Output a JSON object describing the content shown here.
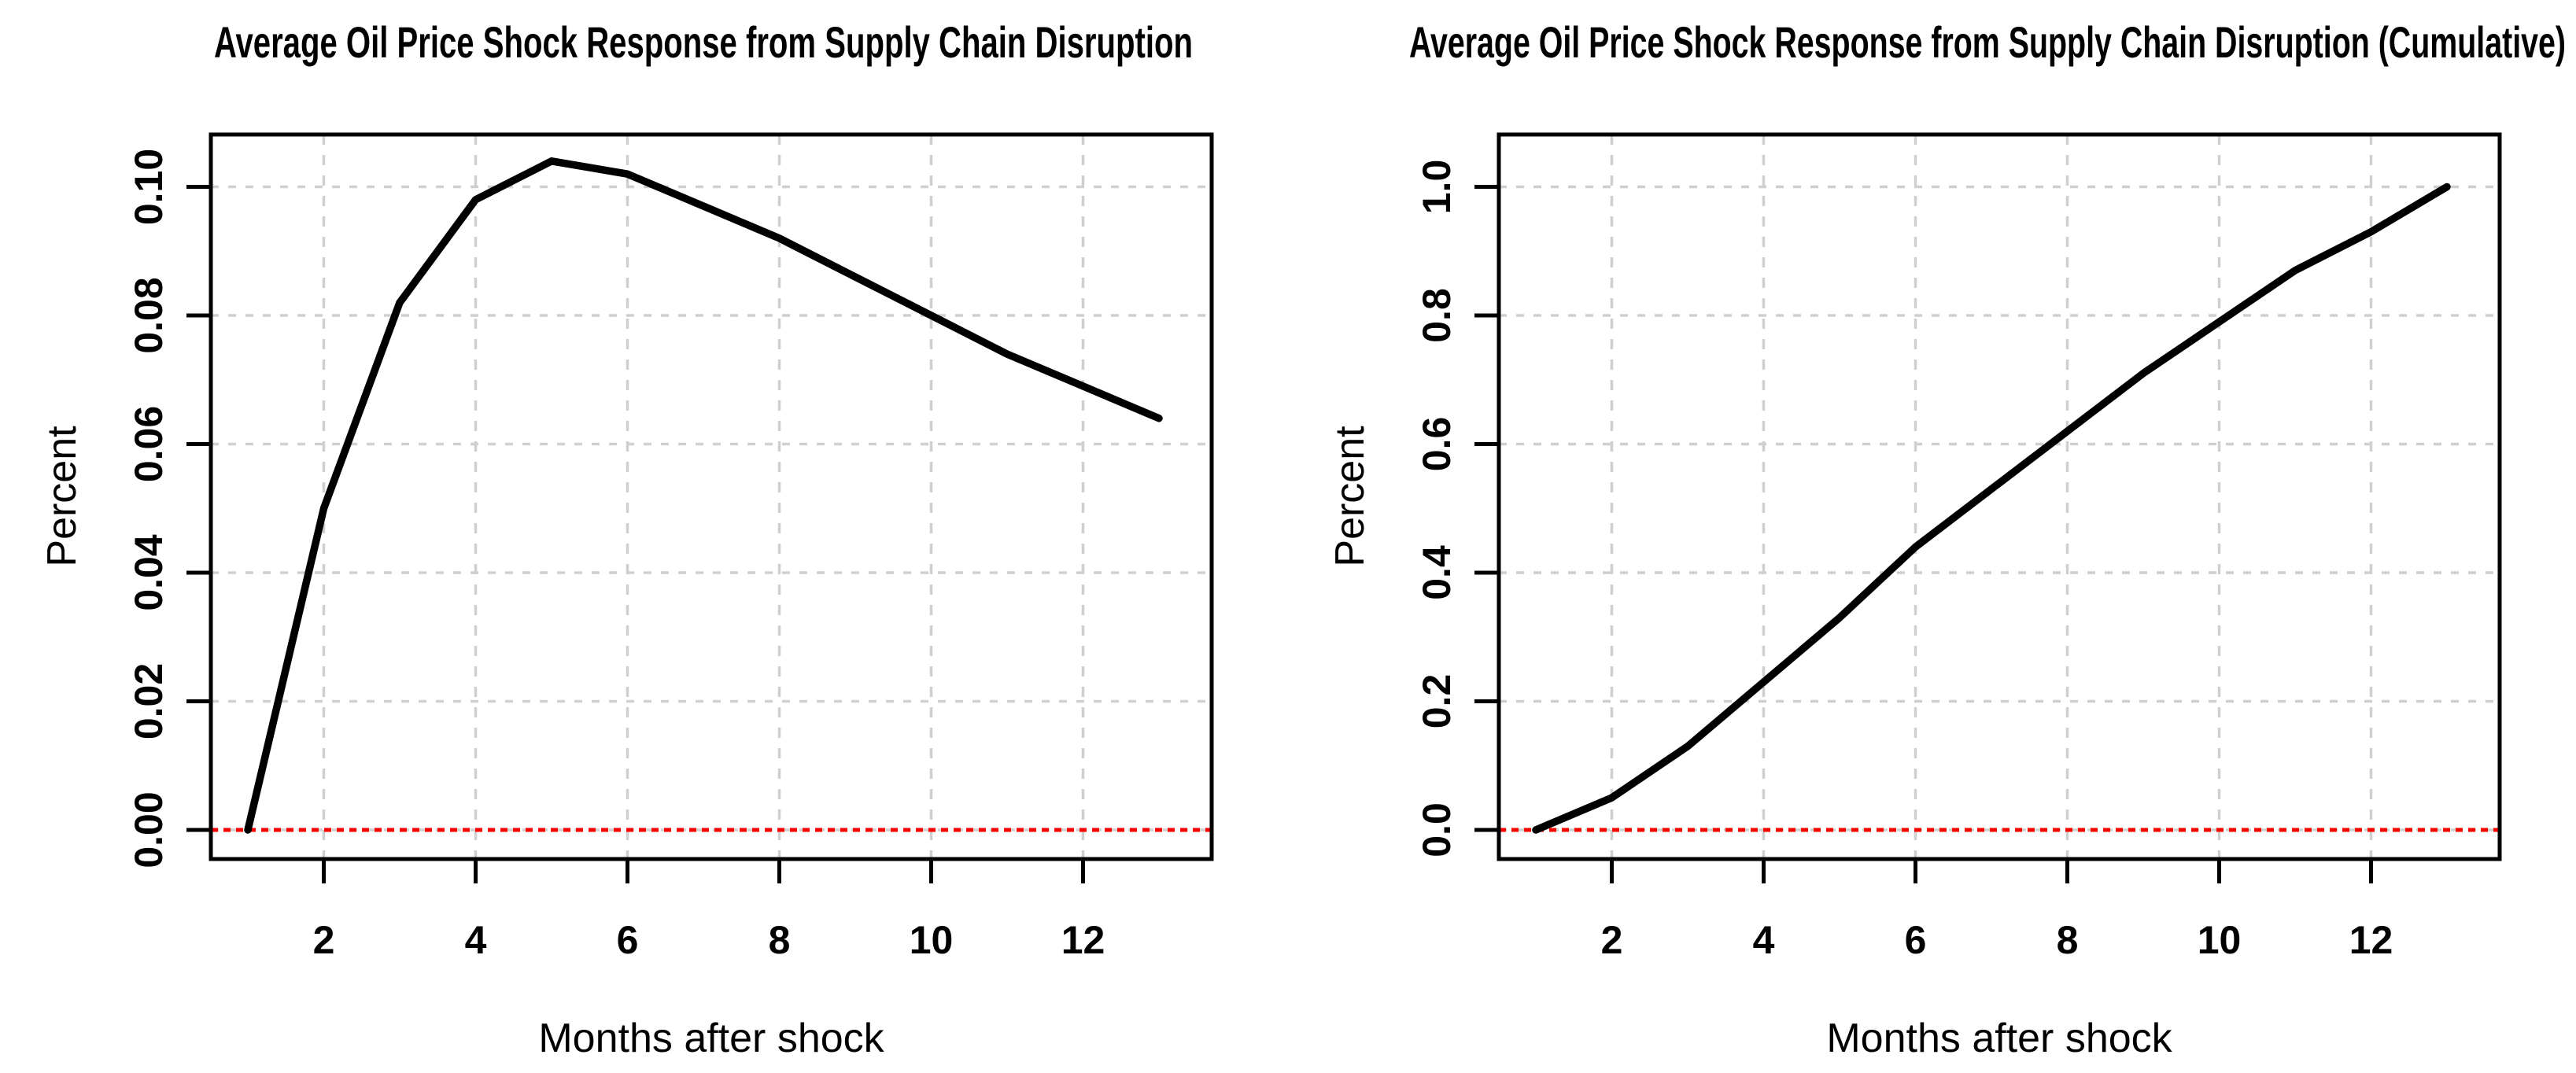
{
  "figure": {
    "background": "#ffffff",
    "panel_count": 2
  },
  "chart_data": [
    {
      "type": "line",
      "title": "Average Oil Price Shock Response from Supply Chain Disruption",
      "xlabel": "Months after shock",
      "ylabel": "Percent",
      "x": [
        1,
        2,
        3,
        4,
        5,
        6,
        7,
        8,
        9,
        10,
        11,
        12,
        13
      ],
      "values": [
        0.0,
        0.05,
        0.082,
        0.098,
        0.104,
        0.102,
        0.097,
        0.092,
        0.086,
        0.08,
        0.074,
        0.069,
        0.064
      ],
      "xlim": [
        0.52,
        13.48
      ],
      "ylim": [
        -0.004,
        0.108
      ],
      "xticks": [
        2,
        4,
        6,
        8,
        10,
        12
      ],
      "xtick_labels": [
        "2",
        "4",
        "6",
        "8",
        "10",
        "12"
      ],
      "ytick_values": [
        0.0,
        0.02,
        0.04,
        0.06,
        0.08,
        0.1
      ],
      "ytick_labels": [
        "0.00",
        "0.02",
        "0.04",
        "0.06",
        "0.08",
        "0.10"
      ],
      "grid": true,
      "legend": "none",
      "line_color": "#000000",
      "grid_color": "#cfcfcf",
      "zero_line_value": 0,
      "zero_line_color": "#ff0000",
      "zero_line_style": "dotted"
    },
    {
      "type": "line",
      "title": "Average Oil Price Shock Response from Supply Chain Disruption (Cumulative)",
      "xlabel": "Months after shock",
      "ylabel": "Percent",
      "x": [
        1,
        2,
        3,
        4,
        5,
        6,
        7,
        8,
        9,
        10,
        11,
        12,
        13
      ],
      "values": [
        0.0,
        0.05,
        0.13,
        0.23,
        0.33,
        0.44,
        0.53,
        0.62,
        0.71,
        0.79,
        0.87,
        0.93,
        1.0
      ],
      "xlim": [
        0.52,
        13.48
      ],
      "ylim": [
        -0.04,
        1.08
      ],
      "xticks": [
        2,
        4,
        6,
        8,
        10,
        12
      ],
      "xtick_labels": [
        "2",
        "4",
        "6",
        "8",
        "10",
        "12"
      ],
      "ytick_values": [
        0.0,
        0.2,
        0.4,
        0.6,
        0.8,
        1.0
      ],
      "ytick_labels": [
        "0.0",
        "0.2",
        "0.4",
        "0.6",
        "0.8",
        "1.0"
      ],
      "grid": true,
      "legend": "none",
      "line_color": "#000000",
      "grid_color": "#cfcfcf",
      "zero_line_value": 0,
      "zero_line_color": "#ff0000",
      "zero_line_style": "dotted"
    }
  ]
}
